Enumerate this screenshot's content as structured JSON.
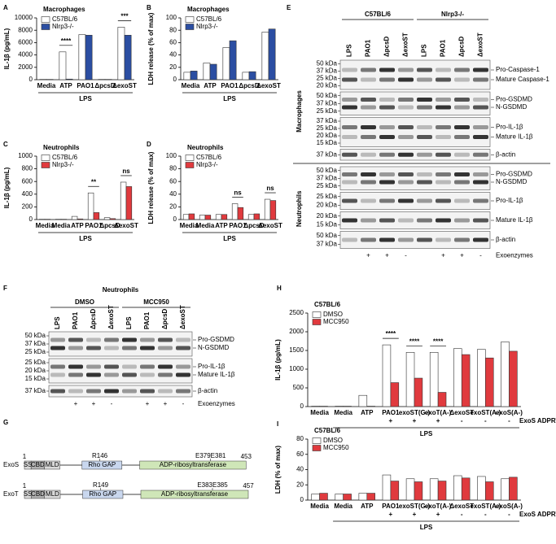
{
  "panel_labels": [
    "A",
    "B",
    "C",
    "D",
    "E",
    "F",
    "G",
    "H",
    "I"
  ],
  "chart_data": [
    {
      "type": "bar",
      "title": "Macrophages",
      "title_color": "#2b4ea2",
      "ylabel": "IL-1β (pg/mL)",
      "categories": [
        "Media",
        "ATP",
        "PAO1",
        "ΔpcsD",
        "ΔexoST"
      ],
      "group_label": "LPS",
      "series": [
        {
          "name": "C57BL/6",
          "color": "#ffffff",
          "values": [
            50,
            4500,
            7300,
            50,
            8500
          ]
        },
        {
          "name": "Nlrp3-/-",
          "color": "#2b4ea2",
          "values": [
            50,
            100,
            7200,
            50,
            7200
          ]
        }
      ],
      "annotations": [
        null,
        "****",
        null,
        null,
        "***"
      ],
      "ylim": [
        0,
        10000
      ],
      "yticks": [
        0,
        2000,
        4000,
        6000,
        8000,
        10000
      ]
    },
    {
      "type": "bar",
      "title": "Macrophages",
      "title_color": "#2b4ea2",
      "ylabel": "LDH release (% of max)",
      "categories": [
        "Media",
        "ATP",
        "PAO1",
        "ΔpcsD",
        "ΔexoST"
      ],
      "group_label": "LPS",
      "series": [
        {
          "name": "C57BL/6",
          "color": "#ffffff",
          "values": [
            12,
            27,
            52,
            12,
            77
          ]
        },
        {
          "name": "Nlrp3-/-",
          "color": "#2b4ea2",
          "values": [
            14,
            25,
            63,
            13,
            82
          ]
        }
      ],
      "ylim": [
        0,
        100
      ],
      "yticks": [
        0,
        20,
        40,
        60,
        80,
        100
      ]
    },
    {
      "type": "bar",
      "title": "Neutrophils",
      "title_color": "#e03a3e",
      "ylabel": "IL-1β (pg/mL)",
      "categories": [
        "Media",
        "Media",
        "ATP",
        "PAO1",
        "ΔpcsD",
        "ΔexoST"
      ],
      "group_label": "LPS",
      "series": [
        {
          "name": "C57BL/6",
          "color": "#ffffff",
          "values": [
            5,
            5,
            50,
            420,
            30,
            590
          ]
        },
        {
          "name": "Nlrp3-/-",
          "color": "#e03a3e",
          "values": [
            5,
            5,
            10,
            110,
            15,
            520
          ]
        }
      ],
      "annotations": [
        null,
        null,
        null,
        "**",
        null,
        "ns"
      ],
      "ylim": [
        0,
        1000
      ],
      "yticks": [
        0,
        200,
        400,
        600,
        800,
        1000
      ]
    },
    {
      "type": "bar",
      "title": "Neutrophils",
      "title_color": "#e03a3e",
      "ylabel": "LDH release (% of max)",
      "categories": [
        "Media",
        "Media",
        "ATP",
        "PAO1",
        "ΔpcsD",
        "ΔexoST"
      ],
      "group_label": "LPS",
      "series": [
        {
          "name": "C57BL/6",
          "color": "#ffffff",
          "values": [
            8,
            7,
            8,
            25,
            8,
            32
          ]
        },
        {
          "name": "Nlrp3-/-",
          "color": "#e03a3e",
          "values": [
            9,
            7,
            8,
            19,
            9,
            30
          ]
        }
      ],
      "annotations": [
        null,
        null,
        null,
        "ns",
        null,
        "ns"
      ],
      "ylim": [
        0,
        100
      ],
      "yticks": [
        0,
        20,
        40,
        60,
        80,
        100
      ]
    },
    {
      "type": "bar",
      "title": "C57BL/6",
      "title_color": "#000000",
      "ylabel": "IL-1β (pg/mL)",
      "categories": [
        "Media",
        "Media",
        "ATP",
        "PAO1",
        "exoST(G-)",
        "exoT(A-)",
        "ΔexoST",
        "exoST(A-)",
        "exoS(A-)"
      ],
      "group_label": "LPS",
      "series": [
        {
          "name": "DMSO",
          "color": "#ffffff",
          "values": [
            10,
            10,
            300,
            1650,
            1450,
            1450,
            1550,
            1530,
            1730
          ]
        },
        {
          "name": "MCC950",
          "color": "#e03a3e",
          "values": [
            10,
            10,
            10,
            640,
            760,
            380,
            1390,
            1300,
            1480
          ]
        }
      ],
      "annotations": [
        null,
        null,
        null,
        "****",
        "****",
        "****",
        null,
        null,
        null
      ],
      "row_label": "ExoS ADPRT",
      "row": [
        null,
        null,
        null,
        "+",
        "+",
        "+",
        "-",
        "-",
        "-"
      ],
      "ylim": [
        0,
        2500
      ],
      "yticks": [
        0,
        500,
        1000,
        1500,
        2000,
        2500
      ]
    },
    {
      "type": "bar",
      "title": "C57BL/6",
      "title_color": "#000000",
      "ylabel": "LDH (% of max)",
      "categories": [
        "Media",
        "Media",
        "ATP",
        "PAO1",
        "exoST(G-)",
        "exoT(A-)",
        "ΔexoST",
        "exoST(A-)",
        "exoS(A-)"
      ],
      "group_label": "LPS",
      "series": [
        {
          "name": "DMSO",
          "color": "#ffffff",
          "values": [
            8,
            8,
            9,
            33,
            28,
            28,
            32,
            31,
            28
          ]
        },
        {
          "name": "MCC950",
          "color": "#e03a3e",
          "values": [
            9,
            8,
            9,
            25,
            24,
            25,
            29,
            24,
            30
          ]
        }
      ],
      "row_label": "ExoS ADPRT",
      "row": [
        null,
        null,
        null,
        "+",
        "+",
        "+",
        "-",
        "-",
        "-"
      ],
      "ylim": [
        0,
        80
      ],
      "yticks": [
        0,
        20,
        40,
        60,
        80
      ]
    }
  ],
  "blot_e": {
    "groups": [
      "C57BL/6",
      "Nlrp3-/-"
    ],
    "lanes": [
      "LPS",
      "PAO1",
      "ΔpcsD",
      "ΔexoST",
      "LPS",
      "PAO1",
      "ΔpcsD",
      "ΔexoST"
    ],
    "sections": [
      {
        "name": "Macrophages",
        "blots": [
          {
            "kda": [
              "50 kDa",
              "37 kDa",
              "25 kDa",
              "20 kDa"
            ],
            "bands": [
              "Pro-Caspase-1",
              "Mature Caspase-1"
            ]
          },
          {
            "kda": [
              "50 kDa",
              "37 kDa",
              "25 kDa"
            ],
            "bands": [
              "Pro-GSDMD",
              "N-GSDMD"
            ]
          },
          {
            "kda": [
              "37 kDa",
              "25 kDa",
              "20 kDa",
              "15 kDa"
            ],
            "bands": [
              "Pro-IL-1β",
              "Mature IL-1β"
            ]
          },
          {
            "kda": [
              "37 kDa"
            ],
            "bands": [
              "β-actin"
            ]
          }
        ]
      },
      {
        "name": "Neutrophils",
        "blots": [
          {
            "kda": [
              "50 kDa",
              "37 kDa",
              "25 kDa"
            ],
            "bands": [
              "Pro-GSDMD",
              "N-GSDMD"
            ]
          },
          {
            "kda": [
              "25 kDa",
              "20 kDa"
            ],
            "bands": [
              "Pro-IL-1β"
            ]
          },
          {
            "kda": [
              "20 kDa",
              "15 kDa"
            ],
            "bands": [
              "Mature IL-1β"
            ]
          },
          {
            "kda": [
              "50 kDa",
              "37 kDa"
            ],
            "bands": [
              "β-actin"
            ]
          }
        ]
      }
    ],
    "exoenzymes": [
      null,
      "+",
      "+",
      "-",
      null,
      "+",
      "+",
      "-"
    ],
    "exoenzymes_label": "Exoenzymes"
  },
  "blot_f": {
    "title": "Neutrophils",
    "groups": [
      "DMSO",
      "MCC950"
    ],
    "lanes": [
      "LPS",
      "PAO1",
      "ΔpcsD",
      "ΔexoST",
      "LPS",
      "PAO1",
      "ΔpcsD",
      "ΔexoST"
    ],
    "blots": [
      {
        "kda": [
          "50 kDa",
          "37 kDa",
          "25 kDa"
        ],
        "bands": [
          "Pro-GSDMD",
          "N-GSDMD"
        ]
      },
      {
        "kda": [
          "25 kDa",
          "20 kDa",
          "15 kDa"
        ],
        "bands": [
          "Pro-IL-1β",
          "Mature IL-1β"
        ]
      },
      {
        "kda": [
          "37 kDa"
        ],
        "bands": [
          "β-actin"
        ]
      }
    ],
    "exoenzymes": [
      null,
      "+",
      "+",
      "-",
      null,
      "+",
      "+",
      "-"
    ],
    "exoenzymes_label": "Exoenzymes"
  },
  "domains": {
    "proteins": [
      {
        "name": "ExoS",
        "start": "1",
        "end": "453",
        "sites": [
          "R146",
          "E379E381"
        ],
        "domains": [
          "SS",
          "CBD",
          "MLD",
          "Rho GAP",
          "ADP-ribosyltransferase"
        ]
      },
      {
        "name": "ExoT",
        "start": "1",
        "end": "457",
        "sites": [
          "R149",
          "E383E385"
        ],
        "domains": [
          "SS",
          "CBD",
          "MLD",
          "Rho GAP",
          "ADP-ribosyltransferase"
        ]
      }
    ]
  }
}
